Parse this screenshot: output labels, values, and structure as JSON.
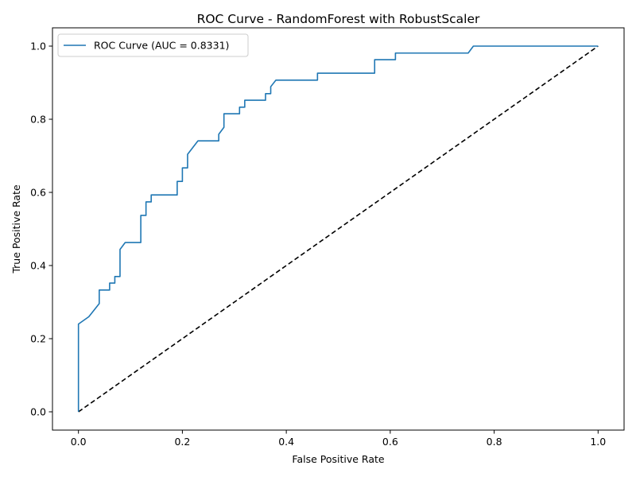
{
  "chart_data": {
    "type": "line",
    "title": "ROC Curve - RandomForest with RobustScaler",
    "xlabel": "False Positive Rate",
    "ylabel": "True Positive Rate",
    "xlim": [
      -0.05,
      1.05
    ],
    "ylim": [
      -0.05,
      1.05
    ],
    "xticks": [
      0.0,
      0.2,
      0.4,
      0.6,
      0.8,
      1.0
    ],
    "yticks": [
      0.0,
      0.2,
      0.4,
      0.6,
      0.8,
      1.0
    ],
    "xtick_labels": [
      "0.0",
      "0.2",
      "0.4",
      "0.6",
      "0.8",
      "1.0"
    ],
    "ytick_labels": [
      "0.0",
      "0.2",
      "0.4",
      "0.6",
      "0.8",
      "1.0"
    ],
    "grid": false,
    "legend_position": "upper-left",
    "series": [
      {
        "name": "ROC Curve (AUC = 0.8331)",
        "color": "#1f77b4",
        "style": "solid",
        "x": [
          0.0,
          0.0,
          0.0,
          0.02,
          0.04,
          0.04,
          0.06,
          0.06,
          0.07,
          0.07,
          0.08,
          0.08,
          0.09,
          0.12,
          0.12,
          0.13,
          0.13,
          0.14,
          0.14,
          0.19,
          0.19,
          0.2,
          0.2,
          0.21,
          0.21,
          0.23,
          0.27,
          0.27,
          0.28,
          0.28,
          0.31,
          0.31,
          0.32,
          0.32,
          0.36,
          0.36,
          0.37,
          0.37,
          0.38,
          0.46,
          0.46,
          0.57,
          0.57,
          0.61,
          0.61,
          0.75,
          0.76,
          1.0
        ],
        "y": [
          0.0,
          0.24,
          0.24,
          0.26,
          0.296,
          0.333,
          0.333,
          0.352,
          0.352,
          0.37,
          0.37,
          0.444,
          0.463,
          0.463,
          0.537,
          0.537,
          0.574,
          0.574,
          0.593,
          0.593,
          0.63,
          0.63,
          0.667,
          0.667,
          0.704,
          0.741,
          0.741,
          0.759,
          0.778,
          0.815,
          0.815,
          0.833,
          0.833,
          0.852,
          0.852,
          0.87,
          0.87,
          0.889,
          0.907,
          0.907,
          0.926,
          0.926,
          0.963,
          0.963,
          0.981,
          0.981,
          1.0,
          1.0
        ]
      },
      {
        "name": "",
        "color": "#000000",
        "style": "dashed",
        "x": [
          0.0,
          1.0
        ],
        "y": [
          0.0,
          1.0
        ]
      }
    ]
  }
}
